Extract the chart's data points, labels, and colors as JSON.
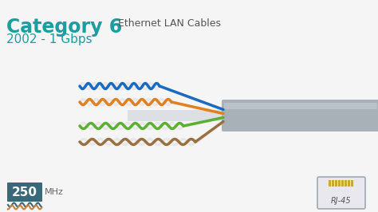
{
  "bg_color": "#f5f5f5",
  "title_cat": "Category 6",
  "title_cat_bold": "Category 6",
  "title_sub": "Ethernet LAN Cables",
  "title_year": "2002 - 1 Gbps",
  "cat_color": "#1a9ea0",
  "sub_color": "#555555",
  "year_color": "#1a9ea0",
  "cable_colors": [
    "#1a6abf",
    "#e08020",
    "#5ab030",
    "#9a7040"
  ],
  "cable_white": "#e8e8e8",
  "cable_jacket_color": "#a8b0b8",
  "mhz_box_color": "#3a6878",
  "mhz_text_color": "#ffffff",
  "mhz_value": "250",
  "mhz_unit": "MHz",
  "rj45_color": "#c8a830",
  "rj45_box_color": "#d0d0d8"
}
